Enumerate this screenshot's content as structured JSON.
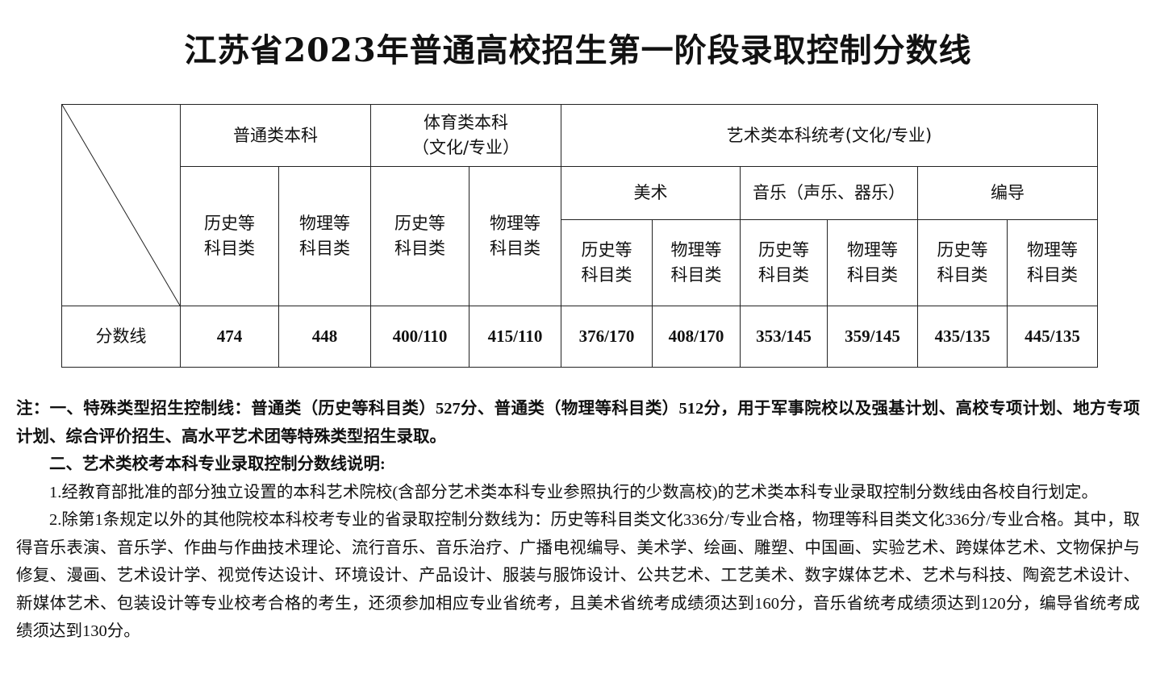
{
  "title": "江苏省2023年普通高校招生第一阶段录取控制分数线",
  "table": {
    "groups": {
      "general": "普通类本科",
      "sports_line1": "体育类本科",
      "sports_line2": "（文化/专业）",
      "arts": "艺术类本科统考(文化/专业)"
    },
    "art_subgroups": [
      "美术",
      "音乐（声乐、器乐）",
      "编导"
    ],
    "category_line1": [
      "历史等",
      "物理等"
    ],
    "category_line2": "科目类",
    "row_label": "分数线",
    "scores": [
      "474",
      "448",
      "400/110",
      "415/110",
      "376/170",
      "408/170",
      "353/145",
      "359/145",
      "435/135",
      "445/135"
    ]
  },
  "notes": {
    "note1": "注：一、特殊类型招生控制线：普通类（历史等科目类）527分、普通类（物理等科目类）512分，用于军事院校以及强基计划、高校专项计划、地方专项计划、综合评价招生、高水平艺术团等特殊类型招生录取。",
    "note2_heading": "二、艺术类校考本科专业录取控制分数线说明:",
    "item1": "1.经教育部批准的部分独立设置的本科艺术院校(含部分艺术类本科专业参照执行的少数高校)的艺术类本科专业录取控制分数线由各校自行划定。",
    "item2": "2.除第1条规定以外的其他院校本科校考专业的省录取控制分数线为：历史等科目类文化336分/专业合格，物理等科目类文化336分/专业合格。其中，取得音乐表演、音乐学、作曲与作曲技术理论、流行音乐、音乐治疗、广播电视编导、美术学、绘画、雕塑、中国画、实验艺术、跨媒体艺术、文物保护与修复、漫画、艺术设计学、视觉传达设计、环境设计、产品设计、服装与服饰设计、公共艺术、工艺美术、数字媒体艺术、艺术与科技、陶瓷艺术设计、新媒体艺术、包装设计等专业校考合格的考生，还须参加相应专业省统考，且美术省统考成绩须达到160分，音乐省统考成绩须达到120分，编导省统考成绩须达到130分。"
  }
}
